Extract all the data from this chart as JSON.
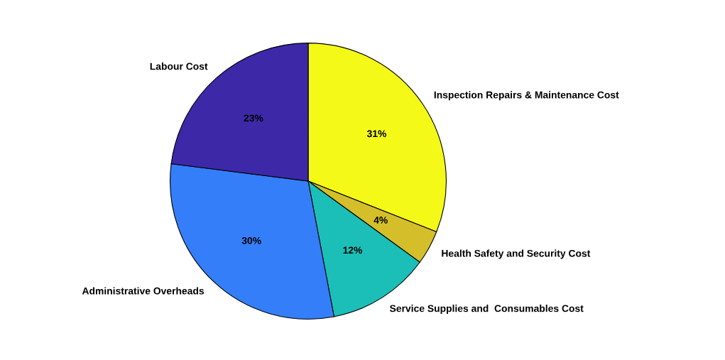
{
  "chart_data": {
    "type": "pie",
    "categories": [
      "Inspection Repairs & Maintenance Cost",
      "Health Safety and Security Cost",
      "Service Supplies and  Consumables Cost",
      "Administrative Overheads",
      "Labour Cost"
    ],
    "values": [
      31,
      4,
      12,
      30,
      23
    ],
    "value_labels": [
      "31%",
      "4%",
      "12%",
      "30%",
      "23%"
    ],
    "colors": [
      "#f5f918",
      "#d4bf2a",
      "#1bbfb7",
      "#347ef9",
      "#3d28a8"
    ]
  }
}
